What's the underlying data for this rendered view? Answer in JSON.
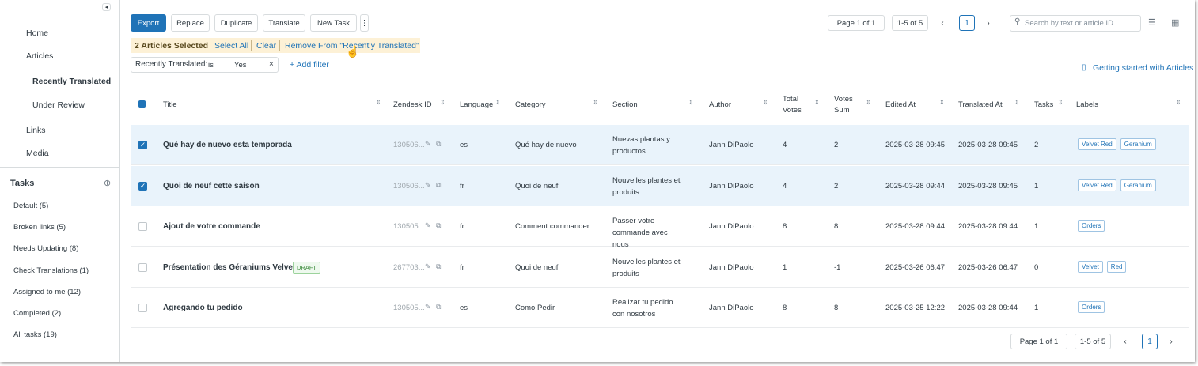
{
  "sidebar": {
    "nav": [
      "Home",
      "Articles",
      "Recently Translated",
      "Under Review",
      "Links",
      "Media"
    ],
    "tasks_title": "Tasks",
    "tasks": [
      "Default (5)",
      "Broken links (5)",
      "Needs Updating (8)",
      "Check Translations (1)",
      "Assigned to me (12)",
      "Completed (2)",
      "All tasks (19)"
    ]
  },
  "toolbar": {
    "buttons": [
      "Export",
      "Replace",
      "Duplicate",
      "Translate",
      "New Task"
    ],
    "page": "Page 1 of 1",
    "range": "1-5 of 5",
    "current": "1",
    "search_placeholder": "Search by text or article ID"
  },
  "selection": {
    "count": "2 Articles Selected",
    "select_all": "Select All",
    "clear": "Clear",
    "remove": "Remove From \"Recently Translated\""
  },
  "filter": {
    "field": "Recently Translated:",
    "operator": "is",
    "value": "Yes",
    "add": "+ Add filter"
  },
  "help_link": "Getting started with Articles",
  "table": {
    "columns": [
      "Title",
      "Zendesk ID",
      "Language",
      "Category",
      "Section",
      "Author",
      "Total Votes",
      "Votes Sum",
      "Edited At",
      "Translated At",
      "Tasks",
      "Labels"
    ],
    "rows": [
      {
        "title": "Qué hay de nuevo esta temporada",
        "zendesk_id": "130506...",
        "language": "es",
        "category": "Qué hay de nuevo",
        "section": "Nuevas plantas y productos",
        "author": "Jann DiPaolo",
        "total_votes": 4,
        "votes_sum": 2,
        "edited_at": "2025-03-28 09:45",
        "translated_at": "2025-03-28 09:45",
        "tasks": 2,
        "labels": [
          "Velvet Red",
          "Geranium"
        ],
        "selected": true
      },
      {
        "title": "Quoi de neuf cette saison",
        "zendesk_id": "130506...",
        "language": "fr",
        "category": "Quoi de neuf",
        "section": "Nouvelles plantes et produits",
        "author": "Jann DiPaolo",
        "total_votes": 4,
        "votes_sum": 2,
        "edited_at": "2025-03-28 09:44",
        "translated_at": "2025-03-28 09:45",
        "tasks": 1,
        "labels": [
          "Velvet Red",
          "Geranium"
        ],
        "selected": true
      },
      {
        "title": "Ajout de votre commande",
        "zendesk_id": "130505...",
        "language": "fr",
        "category": "Comment commander",
        "section": "Passer votre commande avec nous",
        "author": "Jann DiPaolo",
        "total_votes": 8,
        "votes_sum": 8,
        "edited_at": "2025-03-28 09:44",
        "translated_at": "2025-03-28 09:44",
        "tasks": 1,
        "labels": [
          "Orders"
        ],
        "selected": false
      },
      {
        "title": "Présentation des Géraniums Velvet Red",
        "badge": "DRAFT",
        "zendesk_id": "267703...",
        "language": "fr",
        "category": "Quoi de neuf",
        "section": "Nouvelles plantes et produits",
        "author": "Jann DiPaolo",
        "total_votes": 1,
        "votes_sum": -1,
        "edited_at": "2025-03-26 06:47",
        "translated_at": "2025-03-26 06:47",
        "tasks": 0,
        "labels": [
          "Velvet",
          "Red"
        ],
        "selected": false
      },
      {
        "title": "Agregando tu pedido",
        "zendesk_id": "130505...",
        "language": "es",
        "category": "Como Pedir",
        "section": "Realizar tu pedido con nosotros",
        "author": "Jann DiPaolo",
        "total_votes": 8,
        "votes_sum": 8,
        "edited_at": "2025-03-25 12:22",
        "translated_at": "2025-03-28 09:44",
        "tasks": 1,
        "labels": [
          "Orders"
        ],
        "selected": false
      }
    ]
  },
  "footer": {
    "page": "Page 1 of 1",
    "range": "1-5 of 5",
    "current": "1"
  }
}
